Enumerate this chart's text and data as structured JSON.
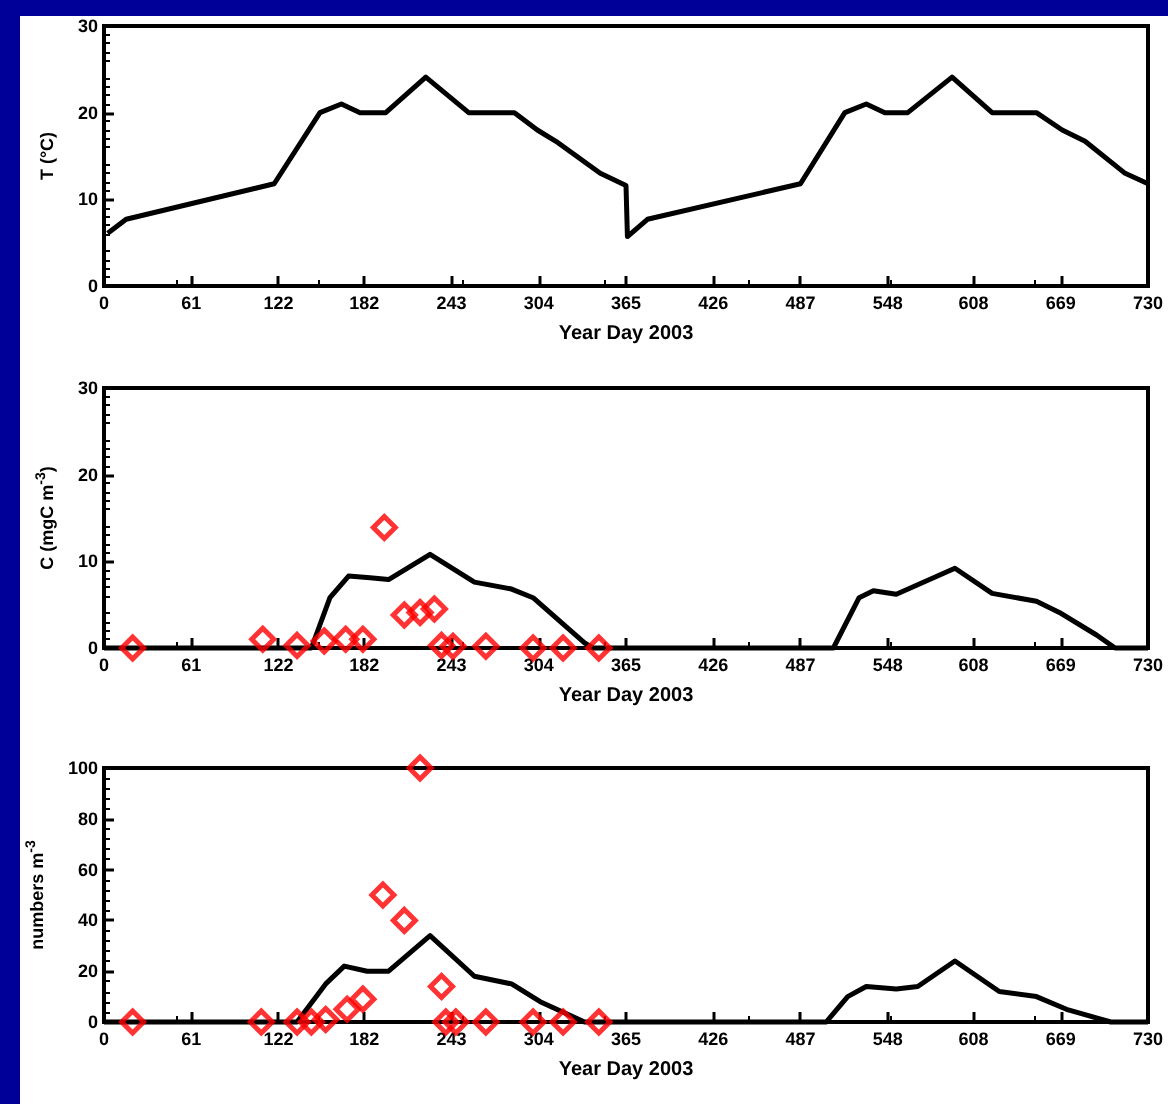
{
  "chart_data": [
    {
      "type": "line",
      "xlabel": "Year Day 2003",
      "ylabel": "T (°C)",
      "xlim": [
        0,
        730
      ],
      "xticks": [
        0,
        61,
        122,
        182,
        243,
        304,
        365,
        426,
        487,
        548,
        608,
        669,
        730
      ],
      "ylim": [
        0,
        30
      ],
      "yticks": [
        0,
        10,
        20,
        30
      ],
      "grid": false,
      "marker": "none",
      "line_style": "solid",
      "series": [
        {
          "color": "#000000",
          "x": [
            2.6,
            15.5,
            119,
            151,
            166,
            179,
            197,
            225,
            255,
            287,
            303,
            316,
            347,
            365,
            366,
            380,
            487,
            518,
            533,
            546,
            562,
            593,
            621,
            652,
            670,
            686,
            714,
            730
          ],
          "values": [
            6.1,
            7.7,
            11.8,
            20,
            21,
            20,
            20,
            24.1,
            20,
            20,
            18,
            16.7,
            13,
            11.6,
            5.7,
            7.7,
            11.8,
            20,
            21,
            20,
            20,
            24.1,
            20,
            20,
            18,
            16.7,
            13,
            11.8
          ]
        }
      ]
    },
    {
      "type": "line",
      "xlabel": "Year Day 2003",
      "ylabel": "C (mgC m$^{-3}$)",
      "xlim": [
        0,
        730
      ],
      "xticks": [
        0,
        61,
        122,
        182,
        243,
        304,
        365,
        426,
        487,
        548,
        608,
        669,
        730
      ],
      "ylim": [
        0,
        30
      ],
      "yticks": [
        0,
        10,
        20,
        30
      ],
      "grid": false,
      "line_style": "solid",
      "series": [
        {
          "type": "line",
          "marker": "none",
          "color": "#000000",
          "x": [
            0,
            145,
            158,
            171,
            186,
            199,
            228,
            259,
            285,
            300,
            336,
            342,
            510,
            528,
            538,
            554,
            595,
            621,
            652,
            668,
            694,
            707,
            730
          ],
          "values": [
            0,
            0,
            5.8,
            8.3,
            8.1,
            7.9,
            10.8,
            7.6,
            6.8,
            5.8,
            0.6,
            0,
            0,
            5.8,
            6.6,
            6.2,
            9.2,
            6.3,
            5.4,
            4.1,
            1.5,
            0,
            0
          ]
        },
        {
          "type": "scatter",
          "marker": "diamond",
          "color": "#ff0000",
          "x": [
            20,
            111,
            135,
            154,
            169,
            181,
            196,
            210,
            221,
            231,
            236,
            244,
            267,
            300,
            321,
            346
          ],
          "values": [
            0,
            1.0,
            0.3,
            0.8,
            1.0,
            1.0,
            13.9,
            3.8,
            4.1,
            4.5,
            0.3,
            0.2,
            0.2,
            0,
            0,
            0
          ]
        }
      ]
    },
    {
      "type": "line",
      "xlabel": "Year Day 2003",
      "ylabel": "numbers m$^{-3}$",
      "xlim": [
        0,
        730
      ],
      "xticks": [
        0,
        61,
        122,
        182,
        243,
        304,
        365,
        426,
        487,
        548,
        608,
        669,
        730
      ],
      "ylim": [
        0,
        100
      ],
      "yticks": [
        0,
        20,
        40,
        60,
        80,
        100
      ],
      "grid": false,
      "line_style": "solid",
      "series": [
        {
          "type": "line",
          "marker": "none",
          "color": "#000000",
          "x": [
            0,
            135,
            155,
            168,
            184,
            199,
            228,
            259,
            285,
            305,
            336,
            505,
            520,
            533,
            554,
            569,
            595,
            626,
            652,
            673,
            704,
            730
          ],
          "values": [
            0,
            0,
            15,
            22,
            20,
            20,
            34,
            18,
            15,
            8,
            0,
            0,
            10,
            14,
            13,
            14,
            24,
            12,
            10,
            5,
            0,
            0
          ]
        },
        {
          "type": "scatter",
          "marker": "diamond",
          "color": "#ff0000",
          "x": [
            20,
            110,
            135,
            145,
            155,
            170,
            181,
            195,
            210,
            221,
            236,
            239,
            246,
            267,
            300,
            321,
            346
          ],
          "values": [
            0,
            0,
            0,
            0,
            1,
            5,
            9,
            50,
            40,
            100,
            14,
            0,
            0,
            0,
            0,
            0,
            0
          ]
        }
      ]
    }
  ]
}
